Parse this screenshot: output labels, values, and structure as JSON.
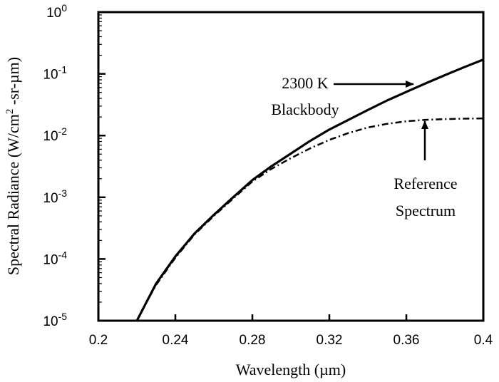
{
  "chart_data": {
    "type": "line",
    "title": "",
    "xlabel": "Wavelength (µm)",
    "ylabel_main": "Spectral Radiance (W/cm",
    "ylabel_sup": "2",
    "ylabel_tail": " -sr-µm)",
    "xlim": [
      0.2,
      0.4
    ],
    "ylim": [
      1e-05,
      1
    ],
    "yscale": "log",
    "grid": false,
    "x_ticks": [
      {
        "value": 0.2,
        "label": "0.2"
      },
      {
        "value": 0.24,
        "label": "0.24"
      },
      {
        "value": 0.28,
        "label": "0.28"
      },
      {
        "value": 0.32,
        "label": "0.32"
      },
      {
        "value": 0.36,
        "label": "0.36"
      },
      {
        "value": 0.4,
        "label": "0.4"
      }
    ],
    "y_ticks": [
      {
        "value": 1e-05,
        "base": "10",
        "exp": "-5"
      },
      {
        "value": 0.0001,
        "base": "10",
        "exp": "-4"
      },
      {
        "value": 0.001,
        "base": "10",
        "exp": "-3"
      },
      {
        "value": 0.01,
        "base": "10",
        "exp": "-2"
      },
      {
        "value": 0.1,
        "base": "10",
        "exp": "-1"
      },
      {
        "value": 1,
        "base": "10",
        "exp": "0"
      }
    ],
    "series": [
      {
        "key": "blackbody",
        "style": "solid",
        "x": [
          0.22,
          0.225,
          0.23,
          0.24,
          0.25,
          0.26,
          0.27,
          0.28,
          0.29,
          0.3,
          0.31,
          0.32,
          0.33,
          0.34,
          0.35,
          0.36,
          0.37,
          0.38,
          0.39,
          0.4
        ],
        "y": [
          1e-05,
          2e-05,
          4e-05,
          0.00011,
          0.00026,
          0.00052,
          0.001,
          0.0019,
          0.0032,
          0.0051,
          0.0082,
          0.0125,
          0.018,
          0.026,
          0.037,
          0.051,
          0.07,
          0.095,
          0.128,
          0.17
        ]
      },
      {
        "key": "reference",
        "style": "dashdot",
        "x": [
          0.22,
          0.225,
          0.23,
          0.24,
          0.25,
          0.26,
          0.27,
          0.28,
          0.29,
          0.3,
          0.31,
          0.32,
          0.33,
          0.34,
          0.35,
          0.36,
          0.37,
          0.38,
          0.39,
          0.4
        ],
        "y": [
          1e-05,
          2e-05,
          3.8e-05,
          0.000105,
          0.00025,
          0.0005,
          0.00095,
          0.0018,
          0.0029,
          0.0043,
          0.0062,
          0.0085,
          0.011,
          0.0135,
          0.0155,
          0.017,
          0.018,
          0.0185,
          0.0188,
          0.019
        ]
      }
    ],
    "annotations": [
      {
        "key": "blackbody_label",
        "lines": [
          "2300 K",
          "Blackbody"
        ],
        "arrow_to": {
          "x": 0.366,
          "y": 0.065
        }
      },
      {
        "key": "reference_label",
        "lines": [
          "Reference",
          "Spectrum"
        ],
        "arrow_to": {
          "x": 0.363,
          "y": 0.018
        }
      }
    ]
  }
}
